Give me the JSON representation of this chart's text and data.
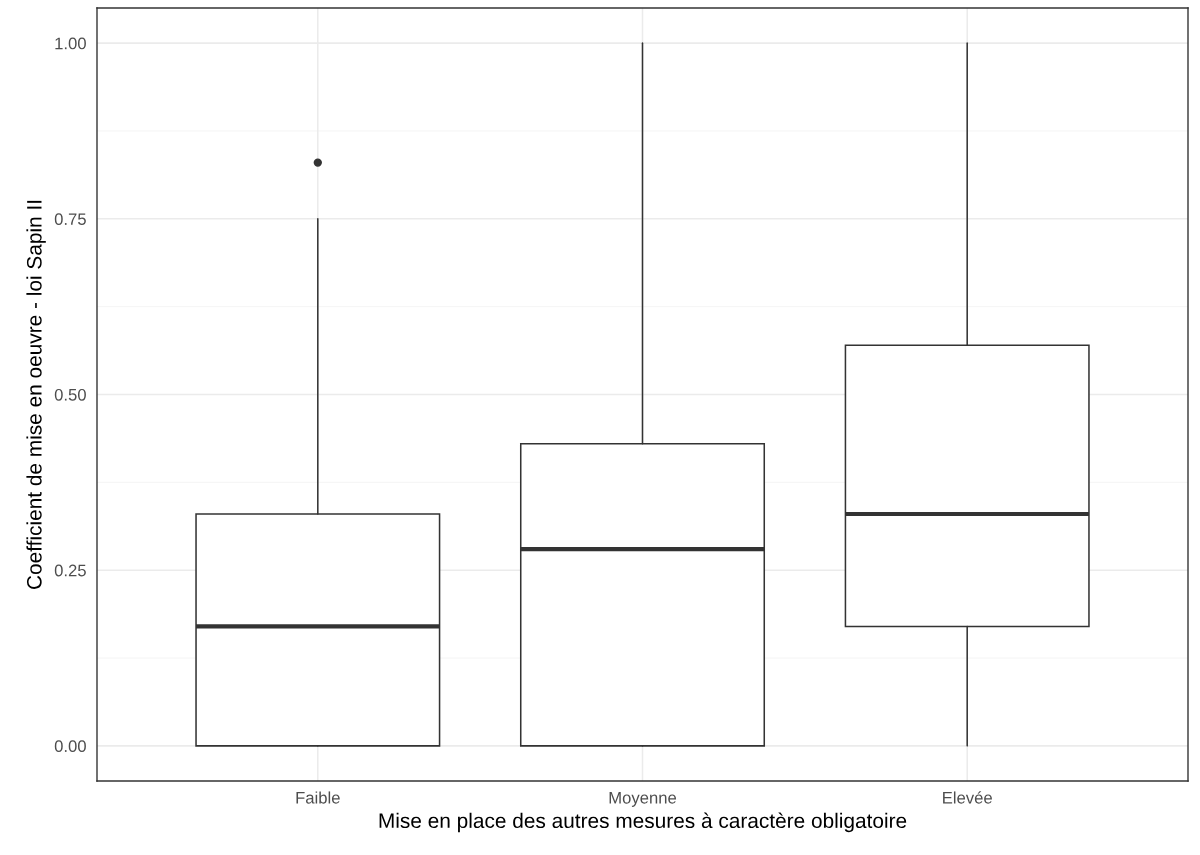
{
  "chart_data": {
    "type": "box",
    "xlabel": "Mise en place des autres mesures à caractère obligatoire",
    "ylabel": "Coefficient de mise en oeuvre - loi Sapin II",
    "categories": [
      "Faible",
      "Moyenne",
      "Elevée"
    ],
    "boxes": [
      {
        "low": 0,
        "q1": 0,
        "median": 0.17,
        "q3": 0.33,
        "high": 0.75,
        "outliers": [
          0.83
        ]
      },
      {
        "low": 0,
        "q1": 0,
        "median": 0.28,
        "q3": 0.43,
        "high": 1.0
      },
      {
        "low": 0,
        "q1": 0.17,
        "median": 0.33,
        "q3": 0.57,
        "high": 1.0
      }
    ],
    "ylim": [
      -0.05,
      1.05
    ],
    "yticks": [
      {
        "value": 0,
        "label": "0.00"
      },
      {
        "value": 0.25,
        "label": "0.25"
      },
      {
        "value": 0.5,
        "label": "0.50"
      },
      {
        "value": 0.75,
        "label": "0.75"
      },
      {
        "value": 1.0,
        "label": "1.00"
      }
    ],
    "grid": true,
    "color": "#333333"
  }
}
